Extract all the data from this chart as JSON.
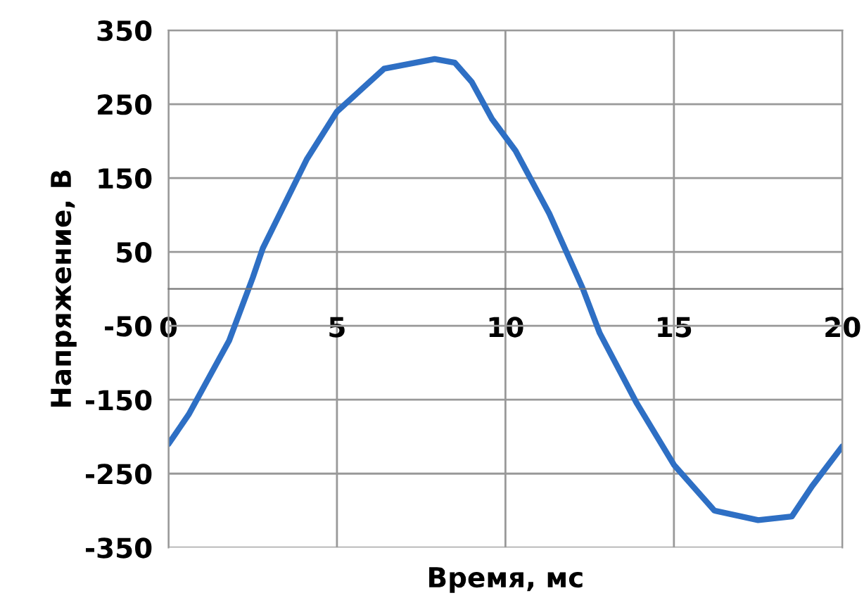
{
  "chart_data": {
    "type": "line",
    "xlabel": "Время, мс",
    "ylabel": "Напряжение, В",
    "xlim": [
      0,
      20
    ],
    "xticks": [
      0,
      5,
      10,
      15,
      20
    ],
    "ylim": [
      -350,
      350
    ],
    "yticks": [
      -350,
      -250,
      -150,
      -50,
      50,
      150,
      250,
      350
    ],
    "grid": true,
    "series": [
      {
        "color": "#2e6fc4",
        "x": [
          0,
          0.6,
          1.8,
          2.5,
          2.8,
          4.1,
          5.0,
          6.4,
          7.9,
          8.5,
          9.0,
          9.6,
          10.3,
          11.3,
          12.3,
          12.8,
          13.9,
          15.0,
          16.2,
          17.5,
          18.5,
          19.1,
          20
        ],
        "values": [
          -210,
          -170,
          -70,
          15,
          55,
          175,
          240,
          298,
          311,
          306,
          280,
          230,
          187,
          102,
          0,
          -60,
          -155,
          -238,
          -300,
          -313,
          -308,
          -267,
          -213
        ]
      }
    ]
  }
}
